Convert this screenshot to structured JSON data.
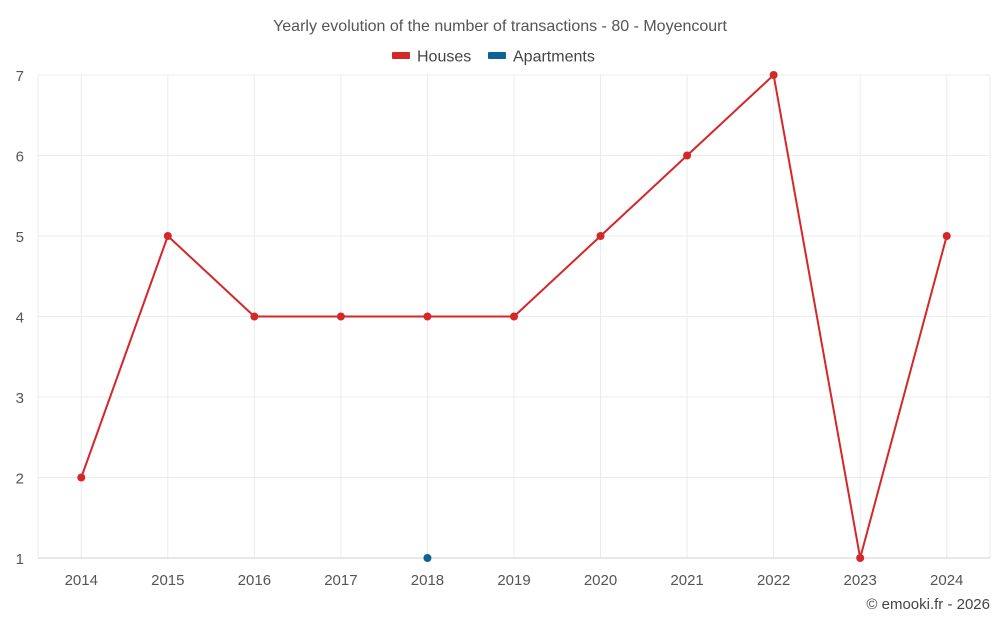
{
  "chart_data": {
    "type": "line",
    "title": "Yearly evolution of the number of transactions - 80 - Moyencourt",
    "categories": [
      "2014",
      "2015",
      "2016",
      "2017",
      "2018",
      "2019",
      "2020",
      "2021",
      "2022",
      "2023",
      "2024"
    ],
    "series": [
      {
        "name": "Houses",
        "color": "#d62728",
        "values": [
          2,
          5,
          4,
          4,
          4,
          4,
          5,
          6,
          7,
          1,
          5
        ]
      },
      {
        "name": "Apartments",
        "color": "#0b6396",
        "values": [
          null,
          null,
          null,
          null,
          1,
          null,
          null,
          null,
          null,
          null,
          null
        ]
      }
    ],
    "xlabel": "",
    "ylabel": "",
    "ylim": [
      1,
      7
    ],
    "yticks": [
      1,
      2,
      3,
      4,
      5,
      6,
      7
    ],
    "grid": true,
    "legend_position": "top-center"
  },
  "credit": "© emooki.fr - 2026"
}
